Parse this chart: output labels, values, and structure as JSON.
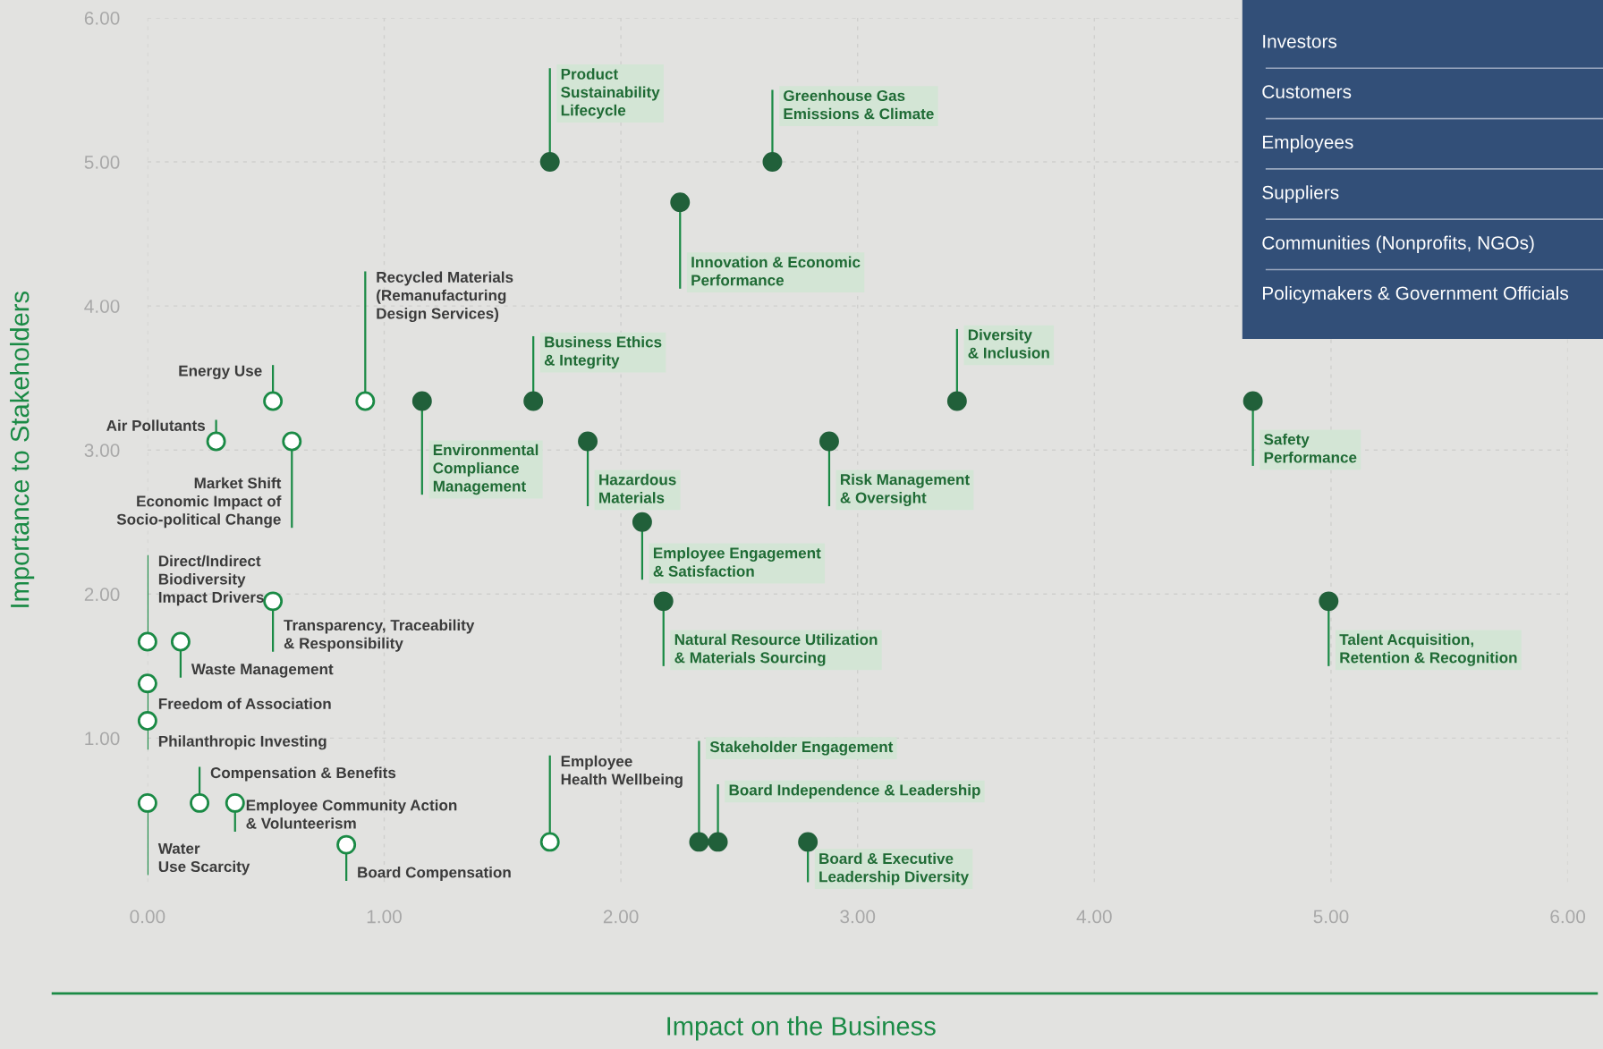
{
  "chart_data": {
    "type": "scatter",
    "xlabel": "Impact on the Business",
    "ylabel": "Importance to Stakeholders",
    "xlim": [
      0,
      6
    ],
    "ylim": [
      0,
      6
    ],
    "xticks": [
      {
        "value": 0,
        "label": "0.00"
      },
      {
        "value": 1,
        "label": "1.00"
      },
      {
        "value": 2,
        "label": "2.00"
      },
      {
        "value": 3,
        "label": "3.00"
      },
      {
        "value": 4,
        "label": "4.00"
      },
      {
        "value": 5,
        "label": "5.00"
      },
      {
        "value": 6,
        "label": "6.00"
      }
    ],
    "yticks": [
      {
        "value": 1,
        "label": "1.00"
      },
      {
        "value": 2,
        "label": "2.00"
      },
      {
        "value": 3,
        "label": "3.00"
      },
      {
        "value": 4,
        "label": "4.00"
      },
      {
        "value": 5,
        "label": "5.00"
      },
      {
        "value": 6,
        "label": "6.00"
      }
    ],
    "grid": true,
    "marker": "circle",
    "series": [
      {
        "color": "#21603a",
        "x": [
          1.7,
          2.64,
          2.25,
          1.63,
          1.16,
          1.86,
          3.42,
          2.88,
          4.67,
          2.09,
          2.18,
          4.99,
          2.33,
          2.41,
          2.79
        ],
        "values": [
          5.0,
          5.0,
          4.72,
          3.34,
          3.34,
          3.06,
          3.34,
          3.06,
          3.34,
          2.5,
          1.95,
          1.95,
          0.28,
          0.28,
          0.28
        ],
        "value_labels": [
          "Product\nSustainability\nLifecycle",
          "Greenhouse Gas\nEmissions & Climate",
          "Innovation & Economic\nPerformance",
          "Business Ethics\n& Integrity",
          "Environmental\nCompliance\nManagement",
          "Hazardous\nMaterials",
          "Diversity\n& Inclusion",
          "Risk Management\n& Oversight",
          "Safety\nPerformance",
          "Employee Engagement\n& Satisfaction",
          "Natural Resource Utilization\n& Materials Sourcing",
          "Talent Acquisition,\nRetention & Recognition",
          "Stakeholder Engagement",
          "Board Independence & Leadership",
          "Board & Executive\nLeadership Diversity"
        ]
      },
      {
        "color": "#ffffff",
        "x": [
          0.53,
          0.92,
          0.29,
          0.61,
          0.53,
          0.0,
          0.14,
          0.0,
          0.0,
          0.0,
          0.22,
          0.37,
          0.84,
          1.7
        ],
        "values": [
          3.34,
          3.34,
          3.06,
          3.06,
          1.95,
          1.67,
          1.67,
          1.38,
          1.12,
          0.55,
          0.55,
          0.55,
          0.26,
          0.28
        ],
        "value_labels": [
          "Energy Use",
          "Recycled Materials\n(Remanufacturing\nDesign Services)",
          "Air Pollutants",
          "Market Shift\nEconomic Impact of\nSocio-political Change",
          "Transparency, Traceability\n& Responsibility",
          "Direct/Indirect\nBiodiversity\nImpact Drivers",
          "Waste Management",
          "Freedom of Association",
          "Philanthropic Investing",
          "Water\nUse Scarcity",
          "Compensation & Benefits",
          "Employee Community Action\n& Volunteerism",
          "Board Compensation",
          "Employee\nHealth Wellbeing"
        ]
      }
    ],
    "annotations": [
      "Investors",
      "Customers",
      "Employees",
      "Suppliers",
      "Communities (Nonprofits, NGOs)",
      "Policymakers & Government Officials"
    ]
  }
}
